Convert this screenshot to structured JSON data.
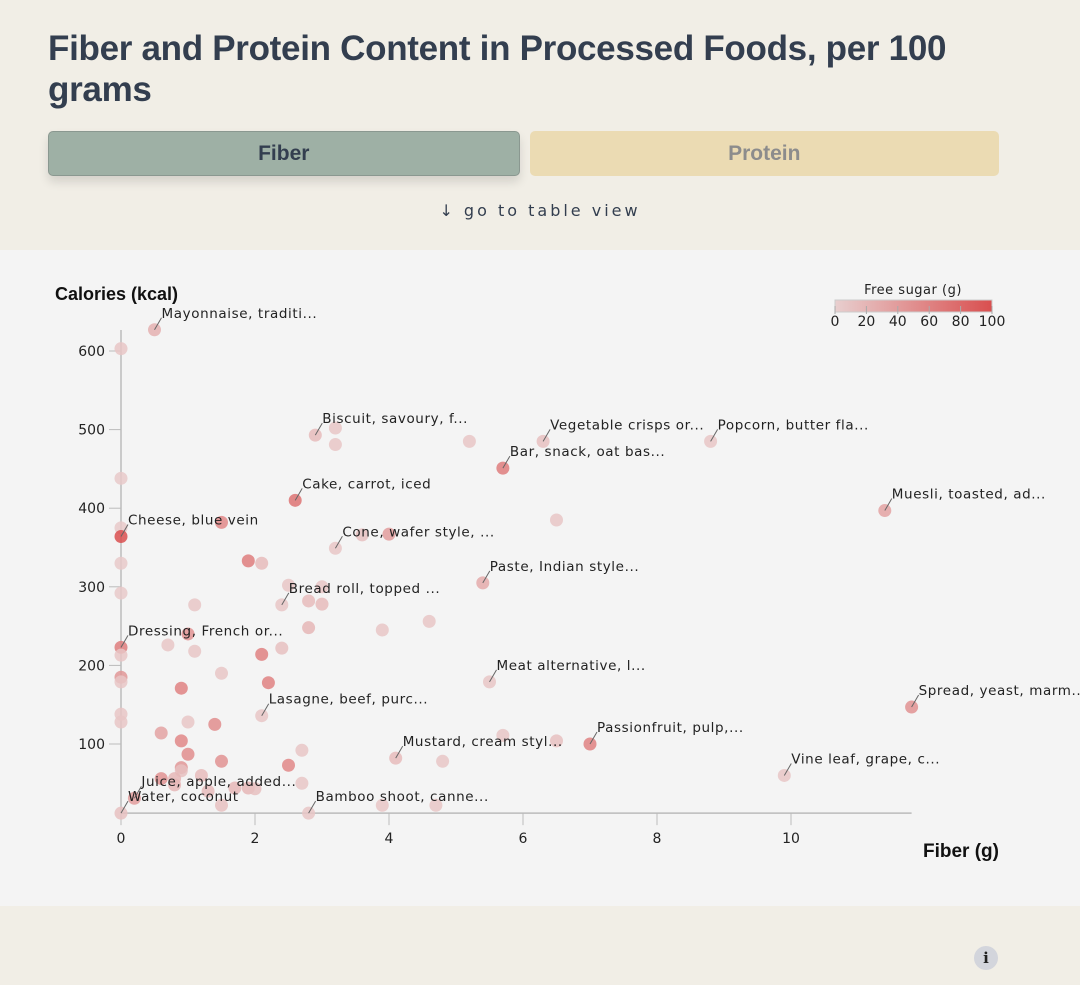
{
  "title": "Fiber and Protein Content in Processed Foods, per 100 grams",
  "tabs": [
    {
      "label": "Fiber",
      "active": true
    },
    {
      "label": "Protein",
      "active": false
    }
  ],
  "table_link": "↓ go to table view",
  "info_icon": "i",
  "colors": {
    "background": "#f1eee6",
    "chart_background": "#f4f4f4",
    "text": "#333e4f",
    "tab_active": "#9eb0a5",
    "tab_inactive": "#ebdbb3",
    "sugar_low": "#e8cfcf",
    "sugar_high": "#d94f4f"
  },
  "chart_data": {
    "type": "scatter",
    "title": "Fiber and Protein Content in Processed Foods, per 100 grams",
    "xlabel": "Fiber (g)",
    "ylabel": "Calories (kcal)",
    "xlim": [
      0,
      11.8
    ],
    "ylim": [
      12,
      640
    ],
    "xticks": [
      0,
      2,
      4,
      6,
      8,
      10
    ],
    "yticks": [
      100,
      200,
      300,
      400,
      500,
      600
    ],
    "grid": false,
    "color_legend": {
      "title": "Free sugar (g)",
      "ticks": [
        0,
        20,
        40,
        60,
        80,
        100
      ],
      "range": [
        0,
        100
      ],
      "placement": "top-right"
    },
    "points": [
      {
        "x": 0.5,
        "y": 627,
        "sugar": 15,
        "label": "Mayonnaise, traditi..."
      },
      {
        "x": 0,
        "y": 603,
        "sugar": 5
      },
      {
        "x": 2.9,
        "y": 493,
        "sugar": 10,
        "label": "Biscuit, savoury, f..."
      },
      {
        "x": 3.2,
        "y": 502,
        "sugar": 5
      },
      {
        "x": 3.2,
        "y": 481,
        "sugar": 5
      },
      {
        "x": 5.2,
        "y": 485,
        "sugar": 5
      },
      {
        "x": 6.3,
        "y": 485,
        "sugar": 8,
        "label": "Vegetable crisps or..."
      },
      {
        "x": 8.8,
        "y": 485,
        "sugar": 5,
        "label": "Popcorn, butter fla..."
      },
      {
        "x": 5.7,
        "y": 451,
        "sugar": 40,
        "label": "Bar, snack, oat bas..."
      },
      {
        "x": 0,
        "y": 438,
        "sugar": 3
      },
      {
        "x": 11.4,
        "y": 397,
        "sugar": 22,
        "label": "Muesli, toasted, ad..."
      },
      {
        "x": 2.6,
        "y": 410,
        "sugar": 45,
        "label": "Cake, carrot, iced"
      },
      {
        "x": 0,
        "y": 375,
        "sugar": 3
      },
      {
        "x": 0,
        "y": 364,
        "sugar": 70,
        "label": "Cheese, blue vein"
      },
      {
        "x": 1.5,
        "y": 382,
        "sugar": 35
      },
      {
        "x": 6.5,
        "y": 385,
        "sugar": 5
      },
      {
        "x": 3.2,
        "y": 349,
        "sugar": 5,
        "label": "Cone, wafer style, ..."
      },
      {
        "x": 3.6,
        "y": 366,
        "sugar": 8
      },
      {
        "x": 4.0,
        "y": 367,
        "sugar": 25
      },
      {
        "x": 1.9,
        "y": 333,
        "sugar": 40
      },
      {
        "x": 2.1,
        "y": 330,
        "sugar": 10
      },
      {
        "x": 0,
        "y": 330,
        "sugar": 3
      },
      {
        "x": 0,
        "y": 292,
        "sugar": 3
      },
      {
        "x": 5.4,
        "y": 305,
        "sugar": 18,
        "label": "Paste, Indian style..."
      },
      {
        "x": 2.5,
        "y": 302,
        "sugar": 5
      },
      {
        "x": 3.0,
        "y": 300,
        "sugar": 5
      },
      {
        "x": 2.4,
        "y": 277,
        "sugar": 5,
        "label": "Bread roll, topped ..."
      },
      {
        "x": 2.8,
        "y": 282,
        "sugar": 10
      },
      {
        "x": 3.0,
        "y": 278,
        "sugar": 10
      },
      {
        "x": 1.1,
        "y": 277,
        "sugar": 5
      },
      {
        "x": 2.8,
        "y": 248,
        "sugar": 12
      },
      {
        "x": 3.9,
        "y": 245,
        "sugar": 5
      },
      {
        "x": 4.6,
        "y": 256,
        "sugar": 5
      },
      {
        "x": 0,
        "y": 223,
        "sugar": 40,
        "label": "Dressing, French or..."
      },
      {
        "x": 0,
        "y": 213,
        "sugar": 5
      },
      {
        "x": 0.7,
        "y": 226,
        "sugar": 5
      },
      {
        "x": 1.0,
        "y": 240,
        "sugar": 30
      },
      {
        "x": 1.1,
        "y": 218,
        "sugar": 5
      },
      {
        "x": 2.1,
        "y": 214,
        "sugar": 38
      },
      {
        "x": 2.4,
        "y": 222,
        "sugar": 8
      },
      {
        "x": 1.5,
        "y": 190,
        "sugar": 5
      },
      {
        "x": 0,
        "y": 185,
        "sugar": 28
      },
      {
        "x": 0,
        "y": 179,
        "sugar": 5
      },
      {
        "x": 0.9,
        "y": 171,
        "sugar": 38
      },
      {
        "x": 2.2,
        "y": 178,
        "sugar": 38
      },
      {
        "x": 5.5,
        "y": 179,
        "sugar": 5,
        "label": "Meat alternative, l..."
      },
      {
        "x": 11.8,
        "y": 147,
        "sugar": 30,
        "label": "Spread, yeast, marm..."
      },
      {
        "x": 2.1,
        "y": 136,
        "sugar": 5,
        "label": "Lasagne, beef, purc..."
      },
      {
        "x": 0,
        "y": 138,
        "sugar": 5
      },
      {
        "x": 0,
        "y": 128,
        "sugar": 5
      },
      {
        "x": 1.0,
        "y": 128,
        "sugar": 5
      },
      {
        "x": 1.4,
        "y": 125,
        "sugar": 32
      },
      {
        "x": 0.6,
        "y": 114,
        "sugar": 22
      },
      {
        "x": 0.9,
        "y": 104,
        "sugar": 35
      },
      {
        "x": 1.0,
        "y": 87,
        "sugar": 32
      },
      {
        "x": 7.0,
        "y": 100,
        "sugar": 38,
        "label": "Passionfruit, pulp,..."
      },
      {
        "x": 5.7,
        "y": 111,
        "sugar": 5
      },
      {
        "x": 6.5,
        "y": 104,
        "sugar": 8
      },
      {
        "x": 2.7,
        "y": 92,
        "sugar": 5
      },
      {
        "x": 4.1,
        "y": 82,
        "sugar": 10,
        "label": "Mustard, cream styl..."
      },
      {
        "x": 4.8,
        "y": 78,
        "sugar": 5
      },
      {
        "x": 1.5,
        "y": 78,
        "sugar": 30
      },
      {
        "x": 2.5,
        "y": 73,
        "sugar": 35
      },
      {
        "x": 0.9,
        "y": 70,
        "sugar": 28
      },
      {
        "x": 0.9,
        "y": 66,
        "sugar": 8
      },
      {
        "x": 0.6,
        "y": 56,
        "sugar": 30
      },
      {
        "x": 0.8,
        "y": 56,
        "sugar": 12
      },
      {
        "x": 1.2,
        "y": 60,
        "sugar": 10
      },
      {
        "x": 9.9,
        "y": 60,
        "sugar": 5,
        "label": "Vine leaf, grape, c..."
      },
      {
        "x": 2.7,
        "y": 50,
        "sugar": 5
      },
      {
        "x": 0.2,
        "y": 31,
        "sugar": 25,
        "label": "Juice, apple, added..."
      },
      {
        "x": 0.8,
        "y": 48,
        "sugar": 12
      },
      {
        "x": 1.7,
        "y": 44,
        "sugar": 12
      },
      {
        "x": 1.9,
        "y": 44,
        "sugar": 12
      },
      {
        "x": 2.0,
        "y": 43,
        "sugar": 8
      },
      {
        "x": 1.3,
        "y": 40,
        "sugar": 10
      },
      {
        "x": 0,
        "y": 12,
        "sugar": 8,
        "label": "Water, coconut"
      },
      {
        "x": 1.5,
        "y": 22,
        "sugar": 8
      },
      {
        "x": 2.8,
        "y": 12,
        "sugar": 5,
        "label": "Bamboo shoot, canne..."
      },
      {
        "x": 3.9,
        "y": 22,
        "sugar": 5
      },
      {
        "x": 4.7,
        "y": 22,
        "sugar": 5
      }
    ]
  }
}
